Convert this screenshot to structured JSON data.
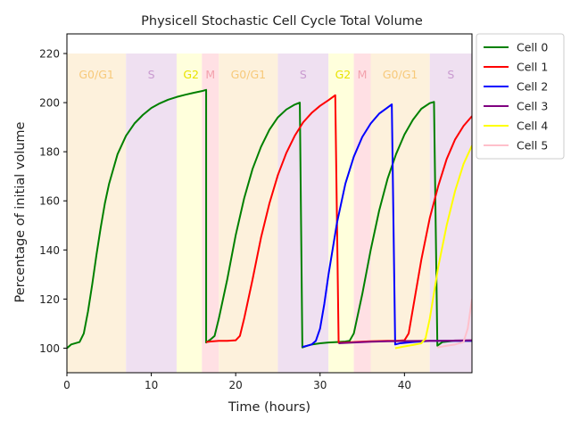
{
  "chart_data": {
    "type": "line",
    "title": "Physicell Stochastic Cell Cycle Total Volume",
    "xlabel": "Time (hours)",
    "ylabel": "Percentage of initial volume",
    "xlim": [
      0,
      48
    ],
    "ylim": [
      90,
      228
    ],
    "xticks": [
      0,
      10,
      20,
      30,
      40
    ],
    "yticks": [
      100,
      120,
      140,
      160,
      180,
      200,
      220
    ],
    "grid": false,
    "legend_position": "outside-right-top",
    "phase_bands": [
      {
        "label": "G0/G1",
        "x0": 0,
        "x1": 7,
        "color": "#fdf1dc",
        "label_color": "#f7c97a"
      },
      {
        "label": "S",
        "x0": 7,
        "x1": 13,
        "color": "#efe0f1",
        "label_color": "#c99ad0"
      },
      {
        "label": "G2",
        "x0": 13,
        "x1": 16,
        "color": "#ffffdc",
        "label_color": "#e8e300"
      },
      {
        "label": "M",
        "x0": 16,
        "x1": 18,
        "color": "#ffe0e4",
        "label_color": "#f3a2ad"
      },
      {
        "label": "G0/G1",
        "x0": 18,
        "x1": 25,
        "color": "#fdf1dc",
        "label_color": "#f7c97a"
      },
      {
        "label": "S",
        "x0": 25,
        "x1": 31,
        "color": "#efe0f1",
        "label_color": "#c99ad0"
      },
      {
        "label": "G2",
        "x0": 31,
        "x1": 34,
        "color": "#ffffdc",
        "label_color": "#e8e300"
      },
      {
        "label": "M",
        "x0": 34,
        "x1": 36,
        "color": "#ffe0e4",
        "label_color": "#f3a2ad"
      },
      {
        "label": "G0/G1",
        "x0": 36,
        "x1": 43,
        "color": "#fdf1dc",
        "label_color": "#f7c97a"
      },
      {
        "label": "S",
        "x0": 43,
        "x1": 48,
        "color": "#efe0f1",
        "label_color": "#c99ad0"
      }
    ],
    "phase_band_ymax": 220,
    "series": [
      {
        "name": "Cell 0",
        "color": "#008000",
        "x": [
          0,
          0.5,
          1.5,
          2,
          2.5,
          3,
          3.5,
          4,
          4.5,
          5,
          6,
          7,
          8,
          9,
          10,
          11,
          12,
          13,
          14,
          15,
          16,
          16.5,
          16.5,
          17,
          17.5,
          18,
          19,
          20,
          21,
          22,
          23,
          24,
          25,
          26,
          27,
          27.6,
          27.9,
          28.5,
          29,
          30,
          31,
          32,
          33,
          33.5,
          34,
          35,
          36,
          37,
          38,
          39,
          40,
          41,
          42,
          43,
          43.5,
          43.9,
          44.5,
          46,
          48
        ],
        "y": [
          100,
          101.5,
          102.5,
          106,
          115,
          126,
          138,
          149,
          159,
          167,
          179,
          186.5,
          191.5,
          195,
          197.8,
          199.7,
          201.2,
          202.3,
          203.2,
          204,
          204.7,
          205.2,
          102.3,
          103.5,
          105,
          112,
          128,
          146,
          161,
          173,
          182,
          189,
          194,
          197.2,
          199.2,
          200,
          100.3,
          101,
          101.5,
          102,
          102.3,
          102.5,
          102.7,
          103,
          106,
          122,
          140,
          156,
          169,
          179,
          187,
          193,
          197.5,
          199.8,
          200.3,
          101,
          102.5,
          103,
          103
        ]
      },
      {
        "name": "Cell 1",
        "color": "#ff0000",
        "x": [
          16.5,
          17,
          18,
          19,
          20,
          20.5,
          21,
          22,
          23,
          24,
          25,
          26,
          27,
          28,
          29,
          30,
          31,
          31.8,
          32.2,
          33,
          34,
          36,
          38,
          39,
          40,
          40.5,
          41,
          42,
          43,
          44,
          45,
          46,
          47,
          48
        ],
        "y": [
          102.5,
          102.7,
          103,
          103,
          103.2,
          105,
          112,
          128,
          145,
          159,
          170.5,
          179.5,
          186.5,
          192,
          195.8,
          198.7,
          201,
          203,
          102.2,
          102.3,
          102.5,
          102.8,
          103,
          103,
          103.2,
          106,
          116,
          136,
          153,
          166,
          177,
          185,
          190.5,
          194.5
        ]
      },
      {
        "name": "Cell 2",
        "color": "#0000ff",
        "x": [
          27.9,
          28.5,
          29,
          29.5,
          30,
          30.5,
          31,
          32,
          33,
          34,
          35,
          36,
          37,
          38,
          38.5,
          38.9,
          39.5,
          41,
          43,
          45,
          48
        ],
        "y": [
          100.5,
          101,
          101.5,
          103,
          108,
          118,
          130,
          151,
          167,
          178,
          186,
          191.5,
          195.5,
          198,
          199.3,
          101.5,
          102,
          102.5,
          103,
          103,
          103
        ]
      },
      {
        "name": "Cell 3",
        "color": "#800080",
        "x": [
          32.2,
          34,
          36,
          38,
          40,
          42,
          44,
          46,
          48
        ],
        "y": [
          102,
          102.3,
          102.6,
          102.8,
          102.9,
          103,
          103,
          103.1,
          103.2
        ]
      },
      {
        "name": "Cell 4",
        "color": "#ffff00",
        "x": [
          38.9,
          40,
          41,
          42,
          42.5,
          43,
          44,
          45,
          46,
          47,
          48
        ],
        "y": [
          100,
          100.7,
          101.3,
          102,
          104,
          112,
          133,
          150,
          164,
          175,
          182.5
        ]
      },
      {
        "name": "Cell 5",
        "color": "#ffc0cb",
        "x": [
          43.9,
          45,
          46,
          47,
          47.5,
          48
        ],
        "y": [
          100.3,
          101,
          101.5,
          102.5,
          108,
          120
        ]
      }
    ]
  }
}
